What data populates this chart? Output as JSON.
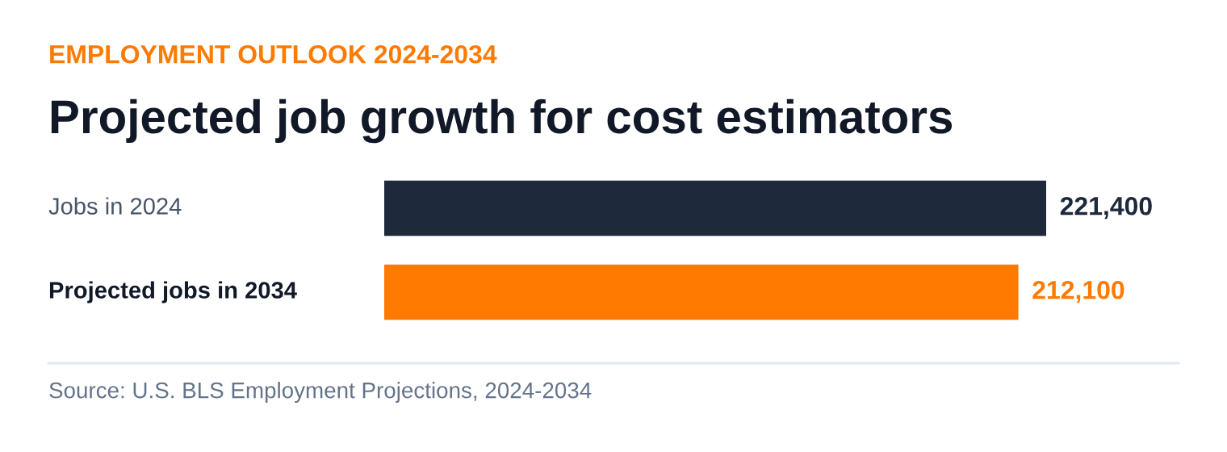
{
  "chart_data": {
    "type": "bar",
    "orientation": "horizontal",
    "subtitle": "EMPLOYMENT OUTLOOK 2024-2034",
    "title": "Projected job growth for cost estimators",
    "categories": [
      "Jobs in 2024",
      "Projected jobs in 2034"
    ],
    "values": [
      221400,
      212100
    ],
    "colors": [
      "#1e293b",
      "#ff7a00"
    ],
    "value_labels": [
      "221,400",
      "212,100"
    ],
    "annotations": [
      "Source: U.S. BLS Employment Projections, 2024-2034"
    ]
  }
}
